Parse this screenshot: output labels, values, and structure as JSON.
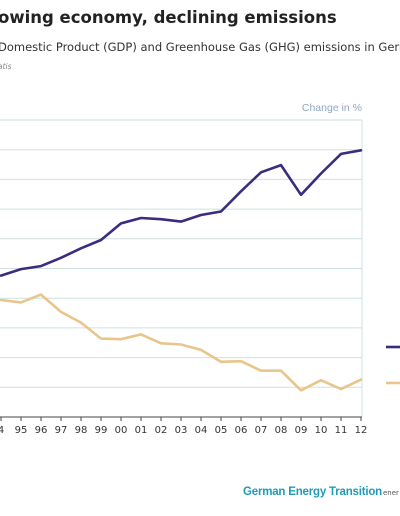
{
  "header": {
    "title": "owing economy, declining emissions",
    "subtitle": "Domestic Product (GDP) and Greenhouse Gas (GHG) emissions in Germa",
    "source": "atis"
  },
  "footer": {
    "brand": "German Energy Transition",
    "url": "ener"
  },
  "colors": {
    "gdp": "#3b2c7e",
    "ghg": "#e8c58b",
    "grid": "#cfe0e0",
    "axis": "#444444"
  },
  "chart_data": {
    "type": "line",
    "title": "",
    "unit_label": "Change in %",
    "categories": [
      "4",
      "95",
      "96",
      "97",
      "98",
      "99",
      "00",
      "01",
      "02",
      "03",
      "04",
      "05",
      "06",
      "07",
      "08",
      "09",
      "10",
      "11",
      "12"
    ],
    "ylim": [
      -30,
      20
    ],
    "series": [
      {
        "key": "gdp",
        "values": [
          -6.2,
          -5.1,
          -4.6,
          -3.2,
          -1.6,
          -0.2,
          2.6,
          3.5,
          3.3,
          2.9,
          4.0,
          4.6,
          8.0,
          11.2,
          12.4,
          7.4,
          11.0,
          14.3,
          14.9
        ]
      },
      {
        "key": "ghg",
        "values": [
          -10.3,
          -10.7,
          -9.4,
          -12.3,
          -14.1,
          -16.8,
          -16.9,
          -16.1,
          -17.6,
          -17.8,
          -18.7,
          -20.7,
          -20.6,
          -22.2,
          -22.2,
          -25.5,
          -23.8,
          -25.3,
          -23.7
        ]
      }
    ]
  }
}
